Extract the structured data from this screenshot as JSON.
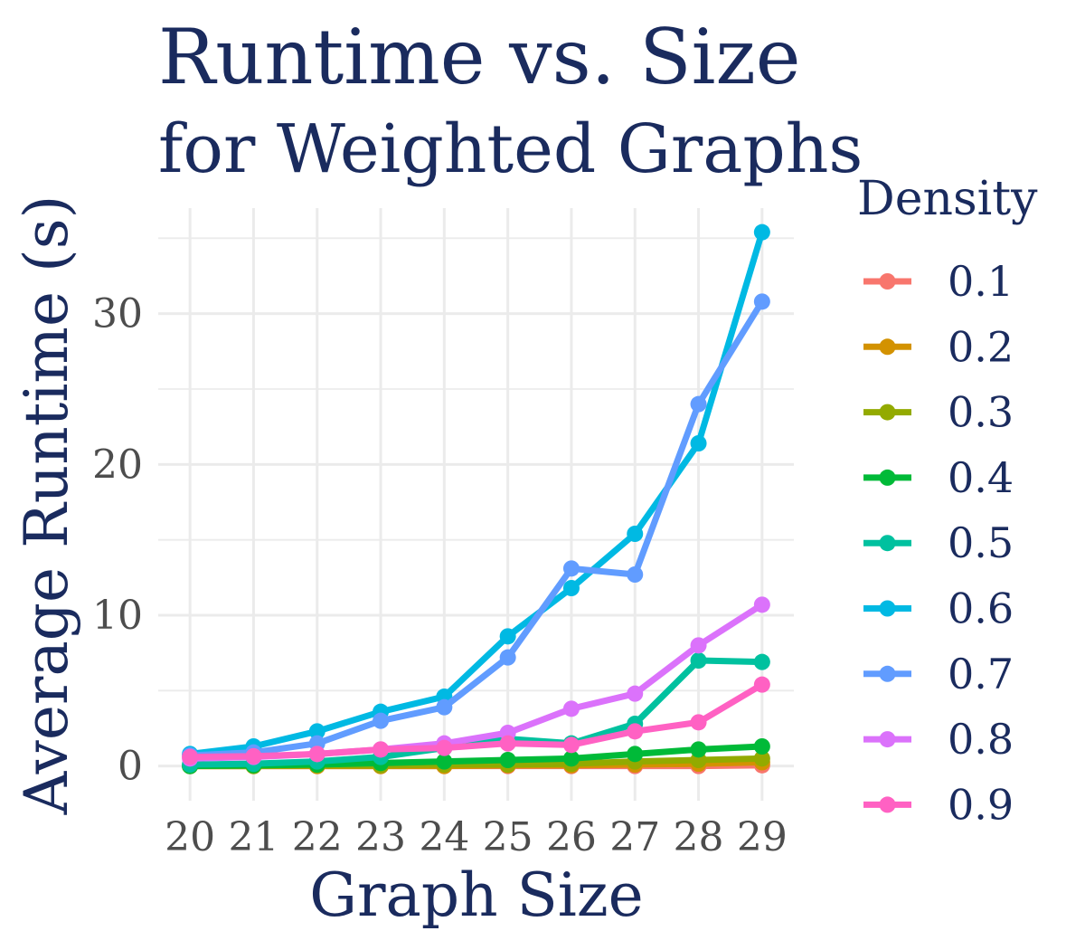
{
  "chart_data": {
    "type": "line",
    "title": "Runtime vs. Size",
    "subtitle": "for Weighted Graphs",
    "xlabel": "Graph Size",
    "ylabel": "Average Runtime (s)",
    "x": [
      20,
      21,
      22,
      23,
      24,
      25,
      26,
      27,
      28,
      29
    ],
    "x_tick_labels": [
      "20",
      "21",
      "22",
      "23",
      "24",
      "25",
      "26",
      "27",
      "28",
      "29"
    ],
    "y_ticks": [
      0,
      10,
      20,
      30
    ],
    "y_tick_labels": [
      "0",
      "10",
      "20",
      "30"
    ],
    "xlim": [
      19.5,
      29.5
    ],
    "ylim": [
      -2.3,
      37
    ],
    "grid": true,
    "legend": {
      "title": "Density",
      "position": "right"
    },
    "series": [
      {
        "name": "0.1",
        "color": "#F8766D",
        "values": [
          0.0,
          0.0,
          0.0,
          0.0,
          0.0,
          0.0,
          0.0,
          0.0,
          0.0,
          0.05
        ]
      },
      {
        "name": "0.2",
        "color": "#D39200",
        "values": [
          0.0,
          0.0,
          0.0,
          0.0,
          0.0,
          0.05,
          0.05,
          0.1,
          0.15,
          0.25
        ]
      },
      {
        "name": "0.3",
        "color": "#93AA00",
        "values": [
          0.0,
          0.0,
          0.05,
          0.05,
          0.1,
          0.1,
          0.15,
          0.3,
          0.4,
          0.5
        ]
      },
      {
        "name": "0.4",
        "color": "#00BA38",
        "values": [
          0.0,
          0.05,
          0.1,
          0.2,
          0.3,
          0.4,
          0.5,
          0.8,
          1.1,
          1.3
        ]
      },
      {
        "name": "0.5",
        "color": "#00C19F",
        "values": [
          0.1,
          0.15,
          0.3,
          0.6,
          1.2,
          1.8,
          1.5,
          2.8,
          7.0,
          6.9
        ]
      },
      {
        "name": "0.6",
        "color": "#00B9E3",
        "values": [
          0.8,
          1.3,
          2.3,
          3.6,
          4.6,
          8.6,
          11.8,
          15.4,
          21.4,
          35.4
        ]
      },
      {
        "name": "0.7",
        "color": "#619CFF",
        "values": [
          0.7,
          0.9,
          1.5,
          3.0,
          3.9,
          7.2,
          13.1,
          12.7,
          24.0,
          30.8
        ]
      },
      {
        "name": "0.8",
        "color": "#DB72FB",
        "values": [
          0.5,
          0.6,
          0.8,
          1.1,
          1.5,
          2.2,
          3.8,
          4.8,
          8.0,
          10.7
        ]
      },
      {
        "name": "0.9",
        "color": "#FF61C3",
        "values": [
          0.6,
          0.65,
          0.8,
          1.1,
          1.2,
          1.5,
          1.4,
          2.3,
          2.9,
          5.4
        ]
      }
    ]
  },
  "style": {
    "title_color": "#1A2B5E",
    "tick_color": "#4D4D4D",
    "grid_color": "#EBEBEB"
  }
}
